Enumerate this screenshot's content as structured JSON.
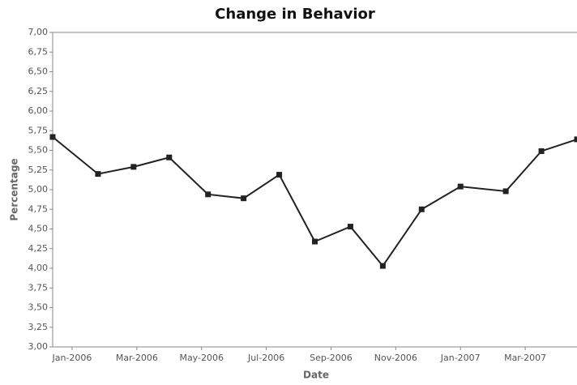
{
  "chart_data": {
    "type": "line",
    "title": "Change in Behavior",
    "x_label": "Date",
    "y_label": "Percentage",
    "x": [
      -0.6,
      0.8,
      1.9,
      3.0,
      4.2,
      5.3,
      6.4,
      7.5,
      8.6,
      9.6,
      10.8,
      12.0,
      13.4,
      14.5,
      15.6
    ],
    "series": [
      {
        "name": "Percentage",
        "color": "#222222",
        "values": [
          5.67,
          5.2,
          5.29,
          5.41,
          4.94,
          4.89,
          5.19,
          4.34,
          4.53,
          4.03,
          4.75,
          5.04,
          4.98,
          5.49,
          5.64
        ]
      }
    ],
    "xlim": [
      -0.6,
      15.6
    ],
    "xticks": [
      {
        "value": 0,
        "label": "Jan-2006"
      },
      {
        "value": 2,
        "label": "Mar-2006"
      },
      {
        "value": 4,
        "label": "May-2006"
      },
      {
        "value": 6,
        "label": "Jul-2006"
      },
      {
        "value": 8,
        "label": "Sep-2006"
      },
      {
        "value": 10,
        "label": "Nov-2006"
      },
      {
        "value": 12,
        "label": "Jan-2007"
      },
      {
        "value": 14,
        "label": "Mar-2007"
      }
    ],
    "ylim": [
      3,
      7
    ],
    "yticks": [
      {
        "value": 3,
        "label": "3,00"
      },
      {
        "value": 3.25,
        "label": "3,25"
      },
      {
        "value": 3.5,
        "label": "3,50"
      },
      {
        "value": 3.75,
        "label": "3,75"
      },
      {
        "value": 4,
        "label": "4,00"
      },
      {
        "value": 4.25,
        "label": "4,25"
      },
      {
        "value": 4.5,
        "label": "4,50"
      },
      {
        "value": 4.75,
        "label": "4,75"
      },
      {
        "value": 5,
        "label": "5,00"
      },
      {
        "value": 5.25,
        "label": "5,25"
      },
      {
        "value": 5.5,
        "label": "5,50"
      },
      {
        "value": 5.75,
        "label": "5,75"
      },
      {
        "value": 6,
        "label": "6,00"
      },
      {
        "value": 6.25,
        "label": "6,25"
      },
      {
        "value": 6.5,
        "label": "6,50"
      },
      {
        "value": 6.75,
        "label": "6,75"
      },
      {
        "value": 7,
        "label": "7,00"
      }
    ],
    "grid": false
  }
}
